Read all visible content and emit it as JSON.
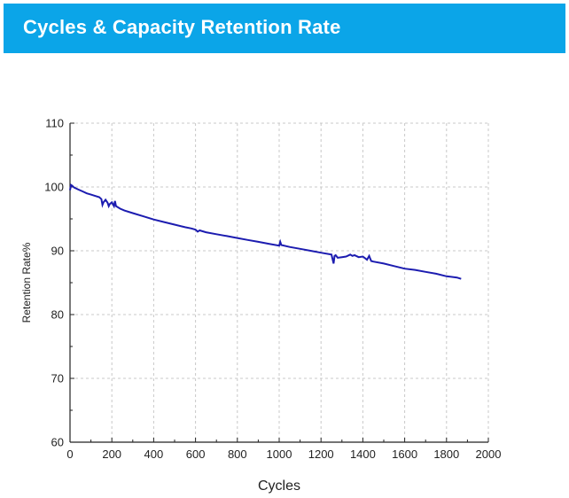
{
  "header": {
    "title": "Cycles & Capacity Retention Rate"
  },
  "colors": {
    "banner": "#0ba5e8",
    "series": "#1c1cb0",
    "grid": "#c8c8c8"
  },
  "chart_data": {
    "type": "line",
    "title": "",
    "xlabel": "Cycles",
    "ylabel": "Retention Rate%",
    "xlim": [
      0,
      2000
    ],
    "ylim": [
      60,
      110
    ],
    "xticks": [
      0,
      200,
      400,
      600,
      800,
      1000,
      1200,
      1400,
      1600,
      1800,
      2000
    ],
    "yticks": [
      60,
      70,
      80,
      90,
      100,
      110
    ],
    "grid": true,
    "series": [
      {
        "x": [
          0,
          5,
          10,
          20,
          40,
          60,
          80,
          100,
          120,
          140,
          150,
          155,
          160,
          170,
          180,
          185,
          190,
          200,
          210,
          215,
          220,
          240,
          260,
          300,
          350,
          400,
          450,
          500,
          550,
          580,
          600,
          610,
          620,
          650,
          700,
          750,
          800,
          850,
          900,
          950,
          1000,
          1005,
          1010,
          1050,
          1100,
          1150,
          1200,
          1250,
          1260,
          1265,
          1270,
          1280,
          1300,
          1320,
          1340,
          1350,
          1360,
          1380,
          1400,
          1420,
          1430,
          1440,
          1450,
          1500,
          1550,
          1600,
          1650,
          1700,
          1750,
          1800,
          1850,
          1870
        ],
        "values": [
          99.5,
          100.3,
          100.2,
          99.9,
          99.6,
          99.3,
          99.0,
          98.8,
          98.6,
          98.4,
          98.1,
          97.2,
          97.6,
          98.0,
          97.5,
          97.0,
          97.3,
          97.6,
          97.0,
          97.8,
          97.0,
          96.6,
          96.3,
          95.9,
          95.4,
          94.9,
          94.5,
          94.1,
          93.7,
          93.5,
          93.3,
          93.0,
          93.2,
          92.9,
          92.6,
          92.3,
          92.0,
          91.7,
          91.4,
          91.1,
          90.8,
          91.4,
          90.9,
          90.6,
          90.3,
          90.0,
          89.7,
          89.4,
          88.0,
          89.2,
          89.3,
          88.9,
          89.0,
          89.1,
          89.4,
          89.2,
          89.3,
          89.0,
          89.1,
          88.6,
          89.2,
          88.4,
          88.3,
          88.0,
          87.6,
          87.2,
          87.0,
          86.7,
          86.4,
          86.0,
          85.8,
          85.6
        ]
      }
    ]
  }
}
